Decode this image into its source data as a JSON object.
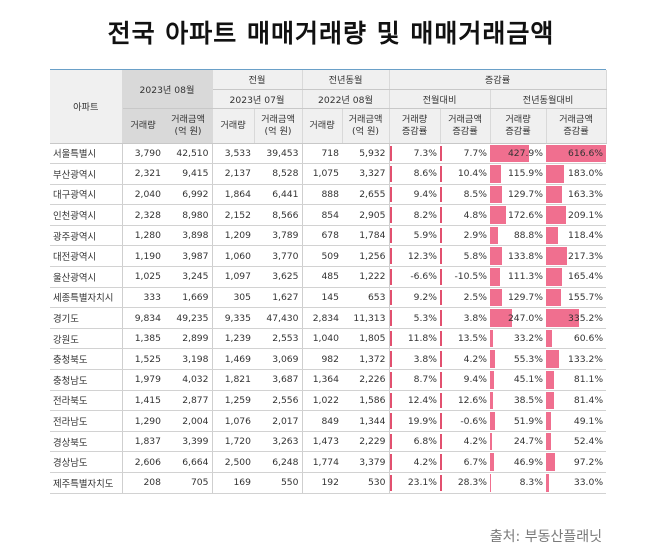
{
  "title": "전국 아파트 매매거래량 및 매매거래금액",
  "source": "출처: 부동산플래닛",
  "colors": {
    "bar": "#f06f8f",
    "header_bg": "#f0f0f0",
    "header_dark": "#d9d9d9"
  },
  "header": {
    "row_label": "아파트",
    "current_period": "2023년 08월",
    "prev_month": "전월",
    "prev_month_period": "2023년 07월",
    "prev_year": "전년동월",
    "prev_year_period": "2022년 08월",
    "change": "증감률",
    "vs_prev_month": "전월대비",
    "vs_prev_year": "전년동월대비",
    "vol": "거래량",
    "amt_l1": "거래금액",
    "amt_l2": "(억 원)",
    "vol_chg_l1": "거래량",
    "vol_chg_l2": "증감률",
    "amt_chg_l1": "거래금액",
    "amt_chg_l2": "증감률"
  },
  "rows": [
    {
      "region": "서울특별시",
      "v": "3,790",
      "a": "42,510",
      "pv": "3,533",
      "pa": "39,453",
      "yv": "718",
      "ya": "5,932",
      "mv": "7.3%",
      "ma": "7.7%",
      "yvc": "427.9%",
      "yac": "616.6%",
      "yvc_n": 427.9,
      "yac_n": 616.6
    },
    {
      "region": "부산광역시",
      "v": "2,321",
      "a": "9,415",
      "pv": "2,137",
      "pa": "8,528",
      "yv": "1,075",
      "ya": "3,327",
      "mv": "8.6%",
      "ma": "10.4%",
      "yvc": "115.9%",
      "yac": "183.0%",
      "yvc_n": 115.9,
      "yac_n": 183.0
    },
    {
      "region": "대구광역시",
      "v": "2,040",
      "a": "6,992",
      "pv": "1,864",
      "pa": "6,441",
      "yv": "888",
      "ya": "2,655",
      "mv": "9.4%",
      "ma": "8.5%",
      "yvc": "129.7%",
      "yac": "163.3%",
      "yvc_n": 129.7,
      "yac_n": 163.3
    },
    {
      "region": "인천광역시",
      "v": "2,328",
      "a": "8,980",
      "pv": "2,152",
      "pa": "8,566",
      "yv": "854",
      "ya": "2,905",
      "mv": "8.2%",
      "ma": "4.8%",
      "yvc": "172.6%",
      "yac": "209.1%",
      "yvc_n": 172.6,
      "yac_n": 209.1
    },
    {
      "region": "광주광역시",
      "v": "1,280",
      "a": "3,898",
      "pv": "1,209",
      "pa": "3,789",
      "yv": "678",
      "ya": "1,784",
      "mv": "5.9%",
      "ma": "2.9%",
      "yvc": "88.8%",
      "yac": "118.4%",
      "yvc_n": 88.8,
      "yac_n": 118.4
    },
    {
      "region": "대전광역시",
      "v": "1,190",
      "a": "3,987",
      "pv": "1,060",
      "pa": "3,770",
      "yv": "509",
      "ya": "1,256",
      "mv": "12.3%",
      "ma": "5.8%",
      "yvc": "133.8%",
      "yac": "217.3%",
      "yvc_n": 133.8,
      "yac_n": 217.3
    },
    {
      "region": "울산광역시",
      "v": "1,025",
      "a": "3,245",
      "pv": "1,097",
      "pa": "3,625",
      "yv": "485",
      "ya": "1,222",
      "mv": "-6.6%",
      "ma": "-10.5%",
      "yvc": "111.3%",
      "yac": "165.4%",
      "yvc_n": 111.3,
      "yac_n": 165.4
    },
    {
      "region": "세종특별자치시",
      "v": "333",
      "a": "1,669",
      "pv": "305",
      "pa": "1,627",
      "yv": "145",
      "ya": "653",
      "mv": "9.2%",
      "ma": "2.5%",
      "yvc": "129.7%",
      "yac": "155.7%",
      "yvc_n": 129.7,
      "yac_n": 155.7
    },
    {
      "region": "경기도",
      "v": "9,834",
      "a": "49,235",
      "pv": "9,335",
      "pa": "47,430",
      "yv": "2,834",
      "ya": "11,313",
      "mv": "5.3%",
      "ma": "3.8%",
      "yvc": "247.0%",
      "yac": "335.2%",
      "yvc_n": 247.0,
      "yac_n": 335.2
    },
    {
      "region": "강원도",
      "v": "1,385",
      "a": "2,899",
      "pv": "1,239",
      "pa": "2,553",
      "yv": "1,040",
      "ya": "1,805",
      "mv": "11.8%",
      "ma": "13.5%",
      "yvc": "33.2%",
      "yac": "60.6%",
      "yvc_n": 33.2,
      "yac_n": 60.6
    },
    {
      "region": "충청북도",
      "v": "1,525",
      "a": "3,198",
      "pv": "1,469",
      "pa": "3,069",
      "yv": "982",
      "ya": "1,372",
      "mv": "3.8%",
      "ma": "4.2%",
      "yvc": "55.3%",
      "yac": "133.2%",
      "yvc_n": 55.3,
      "yac_n": 133.2
    },
    {
      "region": "충청남도",
      "v": "1,979",
      "a": "4,032",
      "pv": "1,821",
      "pa": "3,687",
      "yv": "1,364",
      "ya": "2,226",
      "mv": "8.7%",
      "ma": "9.4%",
      "yvc": "45.1%",
      "yac": "81.1%",
      "yvc_n": 45.1,
      "yac_n": 81.1
    },
    {
      "region": "전라북도",
      "v": "1,415",
      "a": "2,877",
      "pv": "1,259",
      "pa": "2,556",
      "yv": "1,022",
      "ya": "1,586",
      "mv": "12.4%",
      "ma": "12.6%",
      "yvc": "38.5%",
      "yac": "81.4%",
      "yvc_n": 38.5,
      "yac_n": 81.4
    },
    {
      "region": "전라남도",
      "v": "1,290",
      "a": "2,004",
      "pv": "1,076",
      "pa": "2,017",
      "yv": "849",
      "ya": "1,344",
      "mv": "19.9%",
      "ma": "-0.6%",
      "yvc": "51.9%",
      "yac": "49.1%",
      "yvc_n": 51.9,
      "yac_n": 49.1
    },
    {
      "region": "경상북도",
      "v": "1,837",
      "a": "3,399",
      "pv": "1,720",
      "pa": "3,263",
      "yv": "1,473",
      "ya": "2,229",
      "mv": "6.8%",
      "ma": "4.2%",
      "yvc": "24.7%",
      "yac": "52.4%",
      "yvc_n": 24.7,
      "yac_n": 52.4
    },
    {
      "region": "경상남도",
      "v": "2,606",
      "a": "6,664",
      "pv": "2,500",
      "pa": "6,248",
      "yv": "1,774",
      "ya": "3,379",
      "mv": "4.2%",
      "ma": "6.7%",
      "yvc": "46.9%",
      "yac": "97.2%",
      "yvc_n": 46.9,
      "yac_n": 97.2
    },
    {
      "region": "제주특별자치도",
      "v": "208",
      "a": "705",
      "pv": "169",
      "pa": "550",
      "yv": "192",
      "ya": "530",
      "mv": "23.1%",
      "ma": "28.3%",
      "yvc": "8.3%",
      "yac": "33.0%",
      "yvc_n": 8.3,
      "yac_n": 33.0
    }
  ]
}
